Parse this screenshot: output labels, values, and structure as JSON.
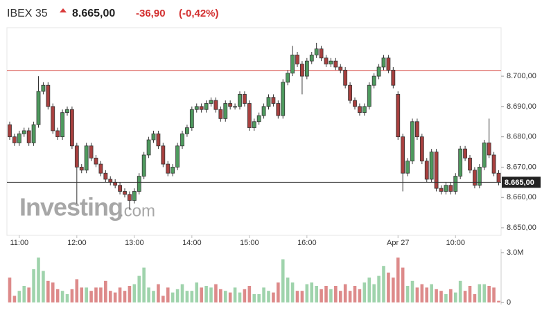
{
  "header": {
    "symbol": "IBEX 35",
    "price": "8.665,00",
    "change": "-36,90",
    "change_pct": "(-0,42%)"
  },
  "watermark": {
    "brand": "Investing",
    "suffix": ".com"
  },
  "chart_data": {
    "type": "candlestick",
    "categories": [
      null,
      null,
      "11:00",
      null,
      null,
      null,
      null,
      null,
      null,
      null,
      null,
      null,
      null,
      null,
      "12:00",
      null,
      null,
      null,
      null,
      null,
      null,
      null,
      null,
      null,
      null,
      null,
      "13:00",
      null,
      null,
      null,
      null,
      null,
      null,
      null,
      null,
      null,
      null,
      null,
      "14:00",
      null,
      null,
      null,
      null,
      null,
      null,
      null,
      null,
      null,
      null,
      null,
      "15:00",
      null,
      null,
      null,
      null,
      null,
      null,
      null,
      null,
      null,
      null,
      null,
      "16:00",
      null,
      null,
      null,
      null,
      null,
      null,
      null,
      null,
      null,
      null,
      null,
      null,
      null,
      null,
      null,
      null,
      null,
      null,
      "Apr 27",
      null,
      null,
      null,
      null,
      null,
      null,
      null,
      null,
      null,
      null,
      null,
      "10:00",
      null,
      null,
      null,
      null,
      null,
      null,
      null,
      null,
      null
    ],
    "open": [
      8684,
      8680,
      8678,
      8681,
      8682,
      8678,
      8684,
      8695,
      8697,
      8690,
      8682,
      8680,
      8688,
      8689,
      8677,
      8670,
      8669,
      8677,
      8673,
      8671,
      8668,
      8666,
      8665,
      8664,
      8662,
      8661,
      8659,
      8662,
      8667,
      8674,
      8679,
      8681,
      8677,
      8671,
      8668,
      8670,
      8677,
      8681,
      8683,
      8689,
      8690,
      8689,
      8691,
      8692,
      8689,
      8686,
      8691,
      8690,
      8690,
      8694,
      8691,
      8683,
      8685,
      8687,
      8690,
      8693,
      8691,
      8687,
      8698,
      8701,
      8707,
      8704,
      8700,
      8705,
      8707,
      8709,
      8706,
      8704,
      8705,
      8703,
      8702,
      8697,
      8692,
      8690,
      8688,
      8690,
      8697,
      8700,
      8703,
      8706,
      8702,
      8694,
      8680,
      8668,
      8672,
      8685,
      8680,
      8672,
      8666,
      8675,
      8663,
      8662,
      8664,
      8662,
      8667,
      8676,
      8673,
      8669,
      8664,
      8670,
      8678,
      8674,
      8668
    ],
    "high": [
      8685,
      8681,
      8682,
      8683,
      8683,
      8685,
      8700,
      8698,
      8698,
      8691,
      8683,
      8689,
      8690,
      8690,
      8678,
      8671,
      8678,
      8678,
      8674,
      8672,
      8669,
      8667,
      8666,
      8665,
      8663,
      8662,
      8663,
      8668,
      8675,
      8680,
      8682,
      8682,
      8678,
      8672,
      8671,
      8678,
      8682,
      8684,
      8690,
      8691,
      8691,
      8692,
      8693,
      8693,
      8690,
      8692,
      8692,
      8691,
      8695,
      8695,
      8692,
      8686,
      8688,
      8691,
      8694,
      8694,
      8692,
      8699,
      8702,
      8710,
      8708,
      8705,
      8706,
      8708,
      8711,
      8710,
      8707,
      8706,
      8706,
      8704,
      8703,
      8698,
      8693,
      8691,
      8691,
      8698,
      8701,
      8704,
      8707,
      8707,
      8703,
      8695,
      8681,
      8673,
      8686,
      8686,
      8681,
      8673,
      8676,
      8676,
      8664,
      8665,
      8665,
      8668,
      8677,
      8677,
      8674,
      8670,
      8671,
      8679,
      8686,
      8675,
      8669
    ],
    "low": [
      8679,
      8677,
      8677,
      8680,
      8677,
      8677,
      8683,
      8694,
      8689,
      8681,
      8679,
      8679,
      8687,
      8676,
      8658,
      8668,
      8668,
      8672,
      8670,
      8667,
      8665,
      8664,
      8663,
      8661,
      8660,
      8656,
      8658,
      8661,
      8666,
      8673,
      8678,
      8676,
      8670,
      8667,
      8667,
      8669,
      8676,
      8680,
      8682,
      8688,
      8688,
      8688,
      8690,
      8688,
      8685,
      8685,
      8689,
      8689,
      8689,
      8690,
      8682,
      8682,
      8684,
      8686,
      8689,
      8690,
      8686,
      8686,
      8697,
      8700,
      8703,
      8694,
      8699,
      8704,
      8706,
      8705,
      8703,
      8703,
      8702,
      8701,
      8696,
      8691,
      8689,
      8687,
      8687,
      8689,
      8696,
      8699,
      8702,
      8701,
      8696,
      8679,
      8662,
      8667,
      8671,
      8679,
      8671,
      8665,
      8665,
      8662,
      8661,
      8661,
      8661,
      8661,
      8666,
      8672,
      8668,
      8663,
      8663,
      8669,
      8673,
      8667,
      8664
    ],
    "close": [
      8680,
      8678,
      8681,
      8682,
      8678,
      8684,
      8695,
      8697,
      8690,
      8682,
      8680,
      8688,
      8689,
      8677,
      8670,
      8669,
      8677,
      8673,
      8671,
      8668,
      8666,
      8665,
      8664,
      8662,
      8661,
      8659,
      8662,
      8667,
      8674,
      8679,
      8681,
      8677,
      8671,
      8668,
      8670,
      8677,
      8681,
      8683,
      8689,
      8690,
      8689,
      8691,
      8692,
      8689,
      8686,
      8691,
      8690,
      8690,
      8694,
      8691,
      8683,
      8685,
      8687,
      8690,
      8693,
      8691,
      8687,
      8698,
      8701,
      8707,
      8704,
      8700,
      8705,
      8707,
      8709,
      8706,
      8704,
      8705,
      8703,
      8702,
      8697,
      8692,
      8690,
      8688,
      8690,
      8697,
      8700,
      8703,
      8706,
      8702,
      8697,
      8680,
      8668,
      8672,
      8685,
      8680,
      8672,
      8666,
      8675,
      8663,
      8662,
      8664,
      8662,
      8667,
      8676,
      8673,
      8669,
      8664,
      8670,
      8678,
      8674,
      8668,
      8665
    ],
    "volumes": [
      1500000,
      400000,
      700000,
      1000000,
      900000,
      2000000,
      2700000,
      1900000,
      1300000,
      1200000,
      800000,
      700000,
      500000,
      800000,
      1400000,
      900000,
      900000,
      700000,
      900000,
      900000,
      1300000,
      700000,
      600000,
      900000,
      700000,
      1000000,
      1100000,
      1600000,
      2100000,
      900000,
      700000,
      1100000,
      400000,
      900000,
      600000,
      800000,
      1100000,
      700000,
      700000,
      1200000,
      900000,
      1000000,
      900000,
      1100000,
      800000,
      700000,
      600000,
      900000,
      600000,
      800000,
      1000000,
      500000,
      500000,
      900000,
      700000,
      600000,
      1200000,
      2600000,
      1500000,
      1200000,
      700000,
      700000,
      1100000,
      1200000,
      1000000,
      800000,
      1000000,
      800000,
      1000000,
      700000,
      1100000,
      700000,
      1000000,
      800000,
      1200000,
      1500000,
      1100000,
      1600000,
      2200000,
      1800000,
      1500000,
      2700000,
      2100000,
      1000000,
      1300000,
      900000,
      1100000,
      900000,
      1100000,
      800000,
      700000,
      500000,
      800000,
      600000,
      1300000,
      700000,
      1000000,
      500000,
      1100000,
      1100000,
      1000000,
      900000,
      100000
    ],
    "ylim": [
      8647.5,
      8716
    ],
    "yticks": [
      {
        "value": 8650,
        "label": "8.650,00"
      },
      {
        "value": 8660,
        "label": "8.660,00"
      },
      {
        "value": 8670,
        "label": "8.670,00"
      },
      {
        "value": 8680,
        "label": "8.680,00"
      },
      {
        "value": 8690,
        "label": "8.690,00"
      },
      {
        "value": 8700,
        "label": "8.700,00"
      }
    ],
    "volume_ylim": [
      0,
      3000000
    ],
    "volume_ticks": [
      {
        "value": 3000000,
        "label": "3.0M"
      },
      0
    ],
    "reference_line": 8701.9,
    "up_color": "#4e9a5e",
    "down_color": "#a8403f",
    "volume_up_color": "#9fd3ac",
    "volume_down_color": "#dd8a8a",
    "reference_color": "#d9534f"
  }
}
